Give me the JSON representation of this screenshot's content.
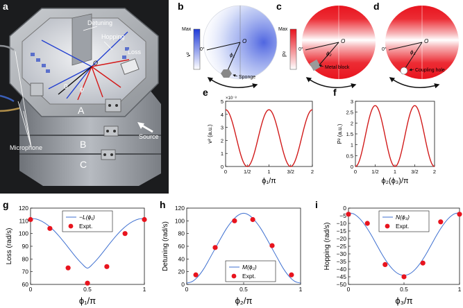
{
  "figure": {
    "panels": {
      "a": "a",
      "b": "b",
      "c": "c",
      "d": "d",
      "e": "e",
      "f": "f",
      "g": "g",
      "h": "h",
      "i": "i"
    },
    "photo": {
      "labels": {
        "detuning": "Detuning",
        "hopping": "Hopping",
        "loss": "Loss",
        "origin": "O",
        "zero": "0",
        "phi": "ϕ",
        "layer_a": "A",
        "layer_b": "B",
        "layer_c": "C",
        "source": "Source",
        "microphone": "Microphone"
      }
    },
    "maps": {
      "b": {
        "colorbar_label": "v²",
        "max": "Max",
        "zero_angle": "0°",
        "origin": "O",
        "angle": "ϕ₁",
        "annotation": "Sponge",
        "color": "#2a3fd6"
      },
      "c": {
        "colorbar_label": "P²",
        "max": "Max",
        "zero_angle": "0°",
        "origin": "O",
        "angle": "ϕ₂",
        "annotation": "Metal block",
        "color": "#e8141e"
      },
      "d": {
        "zero_angle": "0°",
        "origin": "O",
        "angle": "ϕ₃",
        "annotation": "Coupling hole",
        "color": "#e8141e"
      }
    }
  },
  "chart_data": [
    {
      "id": "e",
      "type": "line",
      "title": "",
      "xlabel": "ϕ₁/π",
      "ylabel": "v² (a.u.)",
      "exponent": "×10⁻⁸",
      "xlim": [
        0,
        2
      ],
      "ylim": [
        0,
        5
      ],
      "xticks": [
        0,
        0.5,
        1,
        1.5,
        2
      ],
      "xtick_labels": [
        "0",
        "1/2",
        "1",
        "3/2",
        "2"
      ],
      "yticks": [
        0,
        1,
        2,
        3,
        4,
        5
      ],
      "ytick_labels": [
        "0",
        "1",
        "2",
        "3",
        "4",
        "5"
      ],
      "series": [
        {
          "name": "v²",
          "formula": "4.35·cos²(ϕ₁)",
          "color": "#d11a1a"
        }
      ]
    },
    {
      "id": "f",
      "type": "line",
      "title": "",
      "xlabel": "ϕ₂(ϕ₃)/π",
      "ylabel": "P² (a.u.)",
      "xlim": [
        0,
        2
      ],
      "ylim": [
        0,
        3
      ],
      "xticks": [
        0,
        0.5,
        1,
        1.5,
        2
      ],
      "xtick_labels": [
        "0",
        "1/2",
        "1",
        "3/2",
        "2"
      ],
      "yticks": [
        0,
        0.5,
        1,
        1.5,
        2,
        2.5,
        3
      ],
      "ytick_labels": [
        "0",
        "0.5",
        "1",
        "1.5",
        "2",
        "2.5",
        "3"
      ],
      "series": [
        {
          "name": "P²",
          "formula": "2.8·sin²(ϕ)",
          "color": "#d11a1a"
        }
      ]
    },
    {
      "id": "g",
      "type": "line",
      "title": "",
      "xlabel": "ϕ₁/π",
      "ylabel": "Loss (rad/s)",
      "xlim": [
        0,
        1
      ],
      "ylim": [
        60,
        120
      ],
      "xticks": [
        0,
        0.5,
        1
      ],
      "xtick_labels": [
        "0",
        "0.5",
        "1"
      ],
      "yticks": [
        60,
        70,
        80,
        90,
        100,
        110,
        120
      ],
      "ytick_labels": [
        "60",
        "70",
        "80",
        "90",
        "100",
        "110",
        "120"
      ],
      "legend": {
        "placement": "top-center",
        "entries": [
          "−L(ϕ₁)",
          "Expt."
        ]
      },
      "series": [
        {
          "name": "−L(ϕ₁)",
          "kind": "line",
          "color": "#3d6fd0",
          "x": [
            0,
            0.05,
            0.1,
            0.15,
            0.2,
            0.25,
            0.3,
            0.35,
            0.4,
            0.45,
            0.5,
            0.55,
            0.6,
            0.65,
            0.7,
            0.75,
            0.8,
            0.85,
            0.9,
            0.95,
            1
          ],
          "y": [
            112,
            111.4,
            109.6,
            106.7,
            102.8,
            98,
            92.6,
            86.9,
            81.3,
            76.4,
            72.8,
            76.4,
            81.3,
            86.9,
            92.6,
            98,
            102.8,
            106.7,
            109.6,
            111.4,
            112
          ]
        },
        {
          "name": "Expt.",
          "kind": "scatter",
          "color": "#e8141e",
          "x": [
            0,
            0.17,
            0.33,
            0.5,
            0.67,
            0.83,
            1
          ],
          "y": [
            111,
            104,
            73,
            61,
            74,
            100,
            111
          ]
        }
      ]
    },
    {
      "id": "h",
      "type": "line",
      "title": "",
      "xlabel": "ϕ₂/π",
      "ylabel": "Detuning (rad/s)",
      "xlim": [
        0,
        1
      ],
      "ylim": [
        0,
        120
      ],
      "xticks": [
        0,
        0.5,
        1
      ],
      "xtick_labels": [
        "0",
        "0.5",
        "1"
      ],
      "yticks": [
        0,
        20,
        40,
        60,
        80,
        100,
        120
      ],
      "ytick_labels": [
        "0",
        "20",
        "40",
        "60",
        "80",
        "100",
        "120"
      ],
      "legend": {
        "placement": "bottom-center",
        "entries": [
          "M(ϕ₂)",
          "Expt."
        ]
      },
      "series": [
        {
          "name": "M(ϕ₂)",
          "kind": "line",
          "color": "#3d6fd0",
          "x": [
            0,
            0.05,
            0.1,
            0.15,
            0.2,
            0.25,
            0.3,
            0.35,
            0.4,
            0.45,
            0.5,
            0.55,
            0.6,
            0.65,
            0.7,
            0.75,
            0.8,
            0.85,
            0.9,
            0.95,
            1
          ],
          "y": [
            2,
            4.7,
            12.5,
            24.6,
            40.3,
            56.5,
            72.8,
            88,
            100,
            108.6,
            112,
            108.6,
            100,
            88,
            72.8,
            56.5,
            40.3,
            24.6,
            12.5,
            4.7,
            2
          ]
        },
        {
          "name": "Expt.",
          "kind": "scatter",
          "color": "#e8141e",
          "x": [
            0.08,
            0.25,
            0.42,
            0.58,
            0.75,
            0.92
          ],
          "y": [
            15,
            58,
            100,
            102,
            61,
            15
          ]
        }
      ]
    },
    {
      "id": "i",
      "type": "line",
      "title": "",
      "xlabel": "ϕ₃/π",
      "ylabel": "Hopping (rad/s)",
      "xlim": [
        0,
        1
      ],
      "ylim": [
        -50,
        0
      ],
      "xticks": [
        0,
        0.5,
        1
      ],
      "xtick_labels": [
        "0",
        "0.5",
        "1"
      ],
      "yticks": [
        -50,
        -45,
        -40,
        -35,
        -30,
        -25,
        -20,
        -15,
        -10,
        -5,
        0
      ],
      "ytick_labels": [
        "−50",
        "−45",
        "−40",
        "−35",
        "−30",
        "−25",
        "−20",
        "−15",
        "−10",
        "−5",
        "0"
      ],
      "legend": {
        "placement": "top-center",
        "entries": [
          "N(ϕ₃)",
          "Expt."
        ]
      },
      "series": [
        {
          "name": "N(ϕ₃)",
          "kind": "line",
          "color": "#3d6fd0",
          "x": [
            0,
            0.05,
            0.1,
            0.15,
            0.2,
            0.25,
            0.3,
            0.35,
            0.4,
            0.45,
            0.5,
            0.55,
            0.6,
            0.65,
            0.7,
            0.75,
            0.8,
            0.85,
            0.9,
            0.95,
            1
          ],
          "y": [
            -3,
            -3.9,
            -6.8,
            -11.3,
            -17,
            -23.5,
            -30,
            -35.7,
            -40.2,
            -43.1,
            -44,
            -43.1,
            -40.2,
            -35.7,
            -30,
            -23.5,
            -17,
            -11.3,
            -6.8,
            -3.9,
            -3
          ]
        },
        {
          "name": "Expt.",
          "kind": "scatter",
          "color": "#e8141e",
          "x": [
            0,
            0.17,
            0.33,
            0.5,
            0.67,
            0.83,
            1
          ],
          "y": [
            -4,
            -10,
            -37,
            -45,
            -36,
            -9,
            -4
          ]
        }
      ]
    }
  ]
}
